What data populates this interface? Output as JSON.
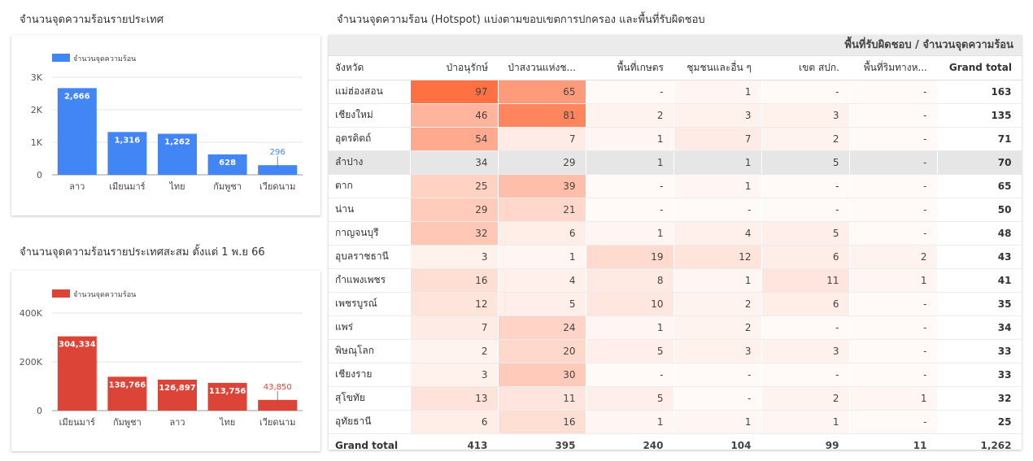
{
  "titles": {
    "country": "จำนวนจุดความร้อนรายประเทศ",
    "country_cumulative": "จำนวนจุดความร้อนรายประเทศสะสม ตั้งแต่ 1 พ.ย 66",
    "table": "จำนวนจุดความร้อน (Hotspot) แบ่งตามขอบเขตการปกครอง และพื้นที่รับผิดชอบ"
  },
  "chart_data": [
    {
      "type": "bar",
      "legend": "จำนวนจุดความร้อน",
      "legend_position": "top-left",
      "color": "#4285f4",
      "categories": [
        "ลาว",
        "เมียนมาร์",
        "ไทย",
        "กัมพูชา",
        "เวียดนาม"
      ],
      "values": [
        2666,
        1316,
        1262,
        628,
        296
      ],
      "value_labels": [
        "2,666",
        "1,316",
        "1,262",
        "628",
        "296"
      ],
      "ytick_labels": [
        "0",
        "1K",
        "2K",
        "3K"
      ],
      "yticks": [
        0,
        1000,
        2000,
        3000
      ],
      "ylim": [
        0,
        3000
      ],
      "grid": true
    },
    {
      "type": "bar",
      "legend": "จำนวนจุดความร้อน",
      "legend_position": "top-left",
      "color": "#db4437",
      "categories": [
        "เมียนมาร์",
        "กัมพูชา",
        "ลาว",
        "ไทย",
        "เวียดนาม"
      ],
      "values": [
        304334,
        138766,
        126897,
        113756,
        43850
      ],
      "value_labels": [
        "304,334",
        "138,766",
        "126,897",
        "113,756",
        "43,850"
      ],
      "ytick_labels": [
        "0",
        "200K",
        "400K"
      ],
      "yticks": [
        0,
        200000,
        400000
      ],
      "ylim": [
        0,
        400000
      ],
      "grid": true
    }
  ],
  "table": {
    "group_header": "พื้นที่รับผิดชอบ / จำนวนจุดความร้อน",
    "columns": [
      "จังหวัด",
      "ป่าอนุรักษ์",
      "ป่าสงวนแห่งช...",
      "พื้นที่เกษตร",
      "ชุมชนและอื่น ๆ",
      "เขต สปก.",
      "พื้นที่ริมทางห...",
      "Grand total"
    ],
    "heat_color": "#ff7043",
    "highlight_row": 3,
    "rows": [
      [
        "แม่ฮ่องสอน",
        97,
        65,
        null,
        1,
        null,
        null,
        163
      ],
      [
        "เชียงใหม่",
        46,
        81,
        2,
        3,
        3,
        null,
        135
      ],
      [
        "อุตรดิตถ์",
        54,
        7,
        1,
        7,
        2,
        null,
        71
      ],
      [
        "ลำปาง",
        34,
        29,
        1,
        1,
        5,
        null,
        70
      ],
      [
        "ตาก",
        25,
        39,
        null,
        1,
        null,
        null,
        65
      ],
      [
        "น่าน",
        29,
        21,
        null,
        null,
        null,
        null,
        50
      ],
      [
        "กาญจนบุรี",
        32,
        6,
        1,
        4,
        5,
        null,
        48
      ],
      [
        "อุบลราชธานี",
        3,
        1,
        19,
        12,
        6,
        2,
        43
      ],
      [
        "กำแพงเพชร",
        16,
        4,
        8,
        1,
        11,
        1,
        41
      ],
      [
        "เพชรบูรณ์",
        12,
        5,
        10,
        2,
        6,
        null,
        35
      ],
      [
        "แพร่",
        7,
        24,
        1,
        2,
        null,
        null,
        34
      ],
      [
        "พิษณุโลก",
        2,
        20,
        5,
        3,
        3,
        null,
        33
      ],
      [
        "เชียงราย",
        3,
        30,
        null,
        null,
        null,
        null,
        33
      ],
      [
        "สุโขทัย",
        13,
        11,
        5,
        null,
        2,
        1,
        32
      ],
      [
        "อุทัยธานี",
        6,
        16,
        1,
        1,
        1,
        null,
        25
      ]
    ],
    "empty_symbol": "-",
    "total_row": [
      "Grand total",
      "413",
      "395",
      "240",
      "104",
      "99",
      "11",
      "1,262"
    ]
  }
}
